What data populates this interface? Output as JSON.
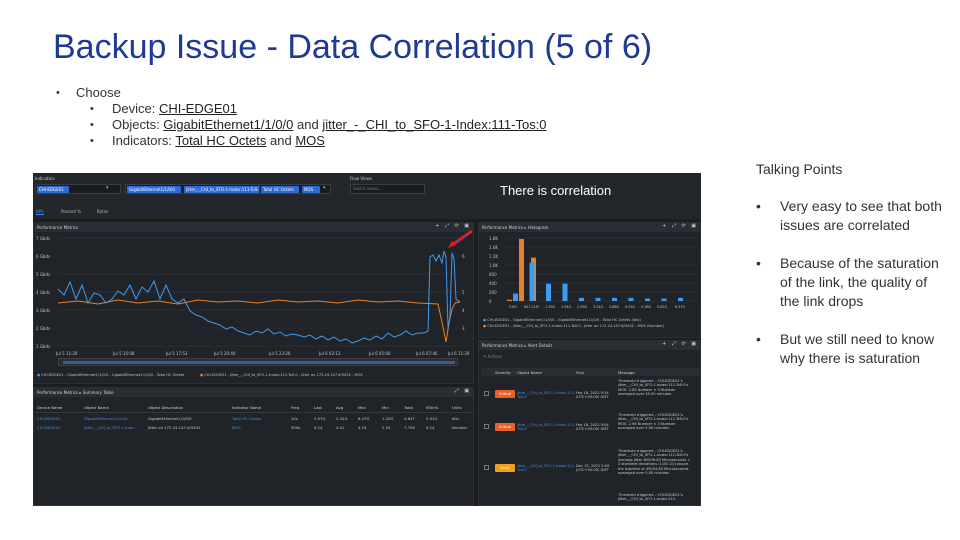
{
  "slide": {
    "title": "Backup Issue - Data Correlation (5 of 6)",
    "bullets": {
      "choose": "Choose",
      "device_label": "Device: ",
      "device_value": "CHI-EDGE01",
      "objects_label": "Objects: ",
      "object_1": "GigabitEthernet1/1/0/0",
      "and_1": " and ",
      "object_2": "jitter_-_CHI_to_SFO-1-Index:111-Tos:0",
      "indicators_label": "Indicators: ",
      "indicator_1": "Total HC Octets",
      "and_2": " and ",
      "indicator_2": "MOS"
    },
    "talking_points": {
      "title": "Talking Points",
      "items": [
        "Very easy to see that both issues are correlated",
        "Because of the saturation of the link, the quality of the link drops",
        "But we still need to know why there is saturation"
      ]
    }
  },
  "dashboard": {
    "annotation": "There is correlation",
    "filters": {
      "label": "Indicators",
      "chips": [
        "CHI-EDGE01",
        "GigabitEthernet1/1/0/0",
        "jitter_-_CHI_to_SFO-1-Index:111-ToS:0",
        "Total HC Octets",
        "MOS"
      ],
      "flow_views_label": "Flow Views",
      "flow_views_placeholder": "Select views..."
    },
    "tabs": [
      "BPS",
      "Percent %",
      "Bytes"
    ],
    "perf_panel": {
      "title": "Performance Metrics",
      "y_left": [
        "7 Gbits",
        "6 Gbits",
        "5 Gbits",
        "4 Gbits",
        "3 Gbits",
        "2 Gbits",
        "1 Gbits"
      ],
      "y_right": [
        "5",
        "4",
        "3"
      ],
      "y_right_full": [
        "6",
        "5",
        "4",
        "3"
      ],
      "x_ticks": [
        "Jul 5 11:29",
        "Jul 5 15:08",
        "Jul 5 17:53",
        "Jul 5 20:40",
        "Jul 5 23:26",
        "Jul 6 02:13",
        "Jul 6 05:00",
        "Jul 6 07:46",
        "Jul 6 11:29"
      ],
      "legend": [
        "CHI-EDGE01 - GigabitEthernet1/1/0/0 - GigabitEthernet1/1/0/0 - Total HC Octets",
        "CHI-EDGE01 - jitter_-_CHI_to_SFO-1-Index:111-ToS:0 - Jitter on 172.24.147.6/5432 - MOS"
      ],
      "series_colors": {
        "octets": "#3e9bf0",
        "mos": "#e8812a"
      }
    },
    "histogram": {
      "title": "Performance Metrics  ▸  Histogram",
      "y_ticks": [
        "1.8K",
        "1.6K",
        "1.2K",
        "1.0K",
        "600",
        "400",
        "200",
        "0"
      ],
      "x_ticks": [
        "2.6G",
        "647.21M",
        "1.29G",
        "1.94G",
        "2.59G",
        "3.24G",
        "3.88G",
        "4.53G",
        "5.18G",
        "5.82G",
        "6.47G"
      ],
      "orange_bars": [
        0.02,
        1.0,
        0.7,
        0.0
      ],
      "blue_bars": [
        0.12,
        0.62,
        0.28,
        0.28,
        0.05,
        0.05,
        0.05,
        0.05,
        0.04,
        0.04,
        0.05
      ],
      "legend": [
        "CHI-EDGE01 - GigabitEthernet1/1/0/0 - GigabitEthernet1/1/0/0 - Total HC Octets (bits)",
        "CHI-EDGE01 - jitter_-_CHI_to_SFO-1-Index:111-ToS:0 - Jitter on 172.24.147.6/5432 - MOS (Number)"
      ]
    },
    "summary": {
      "title": "Performance Metrics  ▸  Summary Table",
      "headers": [
        "Device Name",
        "Object Name",
        "Object Description",
        "Indicator Name",
        "Freq",
        "Last",
        "Avg",
        "Max",
        "Min",
        "Total",
        "95th%",
        "Units"
      ],
      "rows": [
        [
          "CHI-EDGE01",
          "GigabitEthernet1/1/0/0",
          "GigabitEthernet1/1/0/0",
          "Total HC Octets",
          "10s",
          "3.57G",
          "2.42G",
          "6.47G",
          "1.20G",
          "4.64T",
          "5.01G",
          "bits"
        ],
        [
          "CHI-EDGE01",
          "jitter_-_CHI_to_SFO-1-Inde...",
          "Jitter on 172.24.147.6/5432",
          "MOS",
          "300s",
          "4.14",
          "4.01",
          "4.15",
          "2.53",
          "7.70K",
          "4.14",
          "Number"
        ]
      ]
    },
    "alerts": {
      "title": "Performance Metrics  ▸  Alert Details",
      "action": "Actions",
      "headers": [
        "Severity",
        "Object Name",
        "First",
        "Message"
      ],
      "rows": [
        {
          "severity": "Critical",
          "color": "#e8612a",
          "object": "jitter_-_CHI_to_SFO-1-Index:111-ToS:0",
          "first": "Feb 18, 2022 9:24 (UTC+00:00) GMT",
          "message": "Threshold triggered – CHI-EDGE01's jitter_-_CHI_to_SFO-1-Index:111-ToS:0's MOS: 2.83 Number < 3 Number averaged over 30.00 minutes"
        },
        {
          "severity": "Critical",
          "color": "#e8612a",
          "object": "jitter_-_CHI_to_SFO-1-Index:111-ToS:0",
          "first": "Feb 18, 2022 9:04 (UTC+00:00) GMT",
          "message": "Threshold triggered – CHI-EDGE01's jitter_-_CHI_to_SFO-1-Index:111-ToS:0's MOS: 2.56 Number < 3 Number averaged over 5.00 minutes"
        },
        {
          "severity": "Error",
          "color": "#f0a020",
          "object": "jitter_-_CHI_to_SFO-1-Index:111-ToS:0",
          "first": "Dec 15, 2021 9:09 (UTC+00:00) GMT",
          "message": "Threshold triggered – CHI-EDGE01's jitter_-_CHI_to_SFO-1-Index:111-ToS:0's Average Jitter 80006.00 Microseconds > 3 standard deviations (1187.20) above the baseline of 49054.80 Microseconds averaged over 5.00 minutes"
        },
        {
          "severity": "",
          "color": "#e8612a",
          "object": "",
          "first": "",
          "message": "Threshold triggered – CHI-EDGE01's jitter_-_CHI_to_SFO-1-Index:111-"
        }
      ]
    }
  }
}
